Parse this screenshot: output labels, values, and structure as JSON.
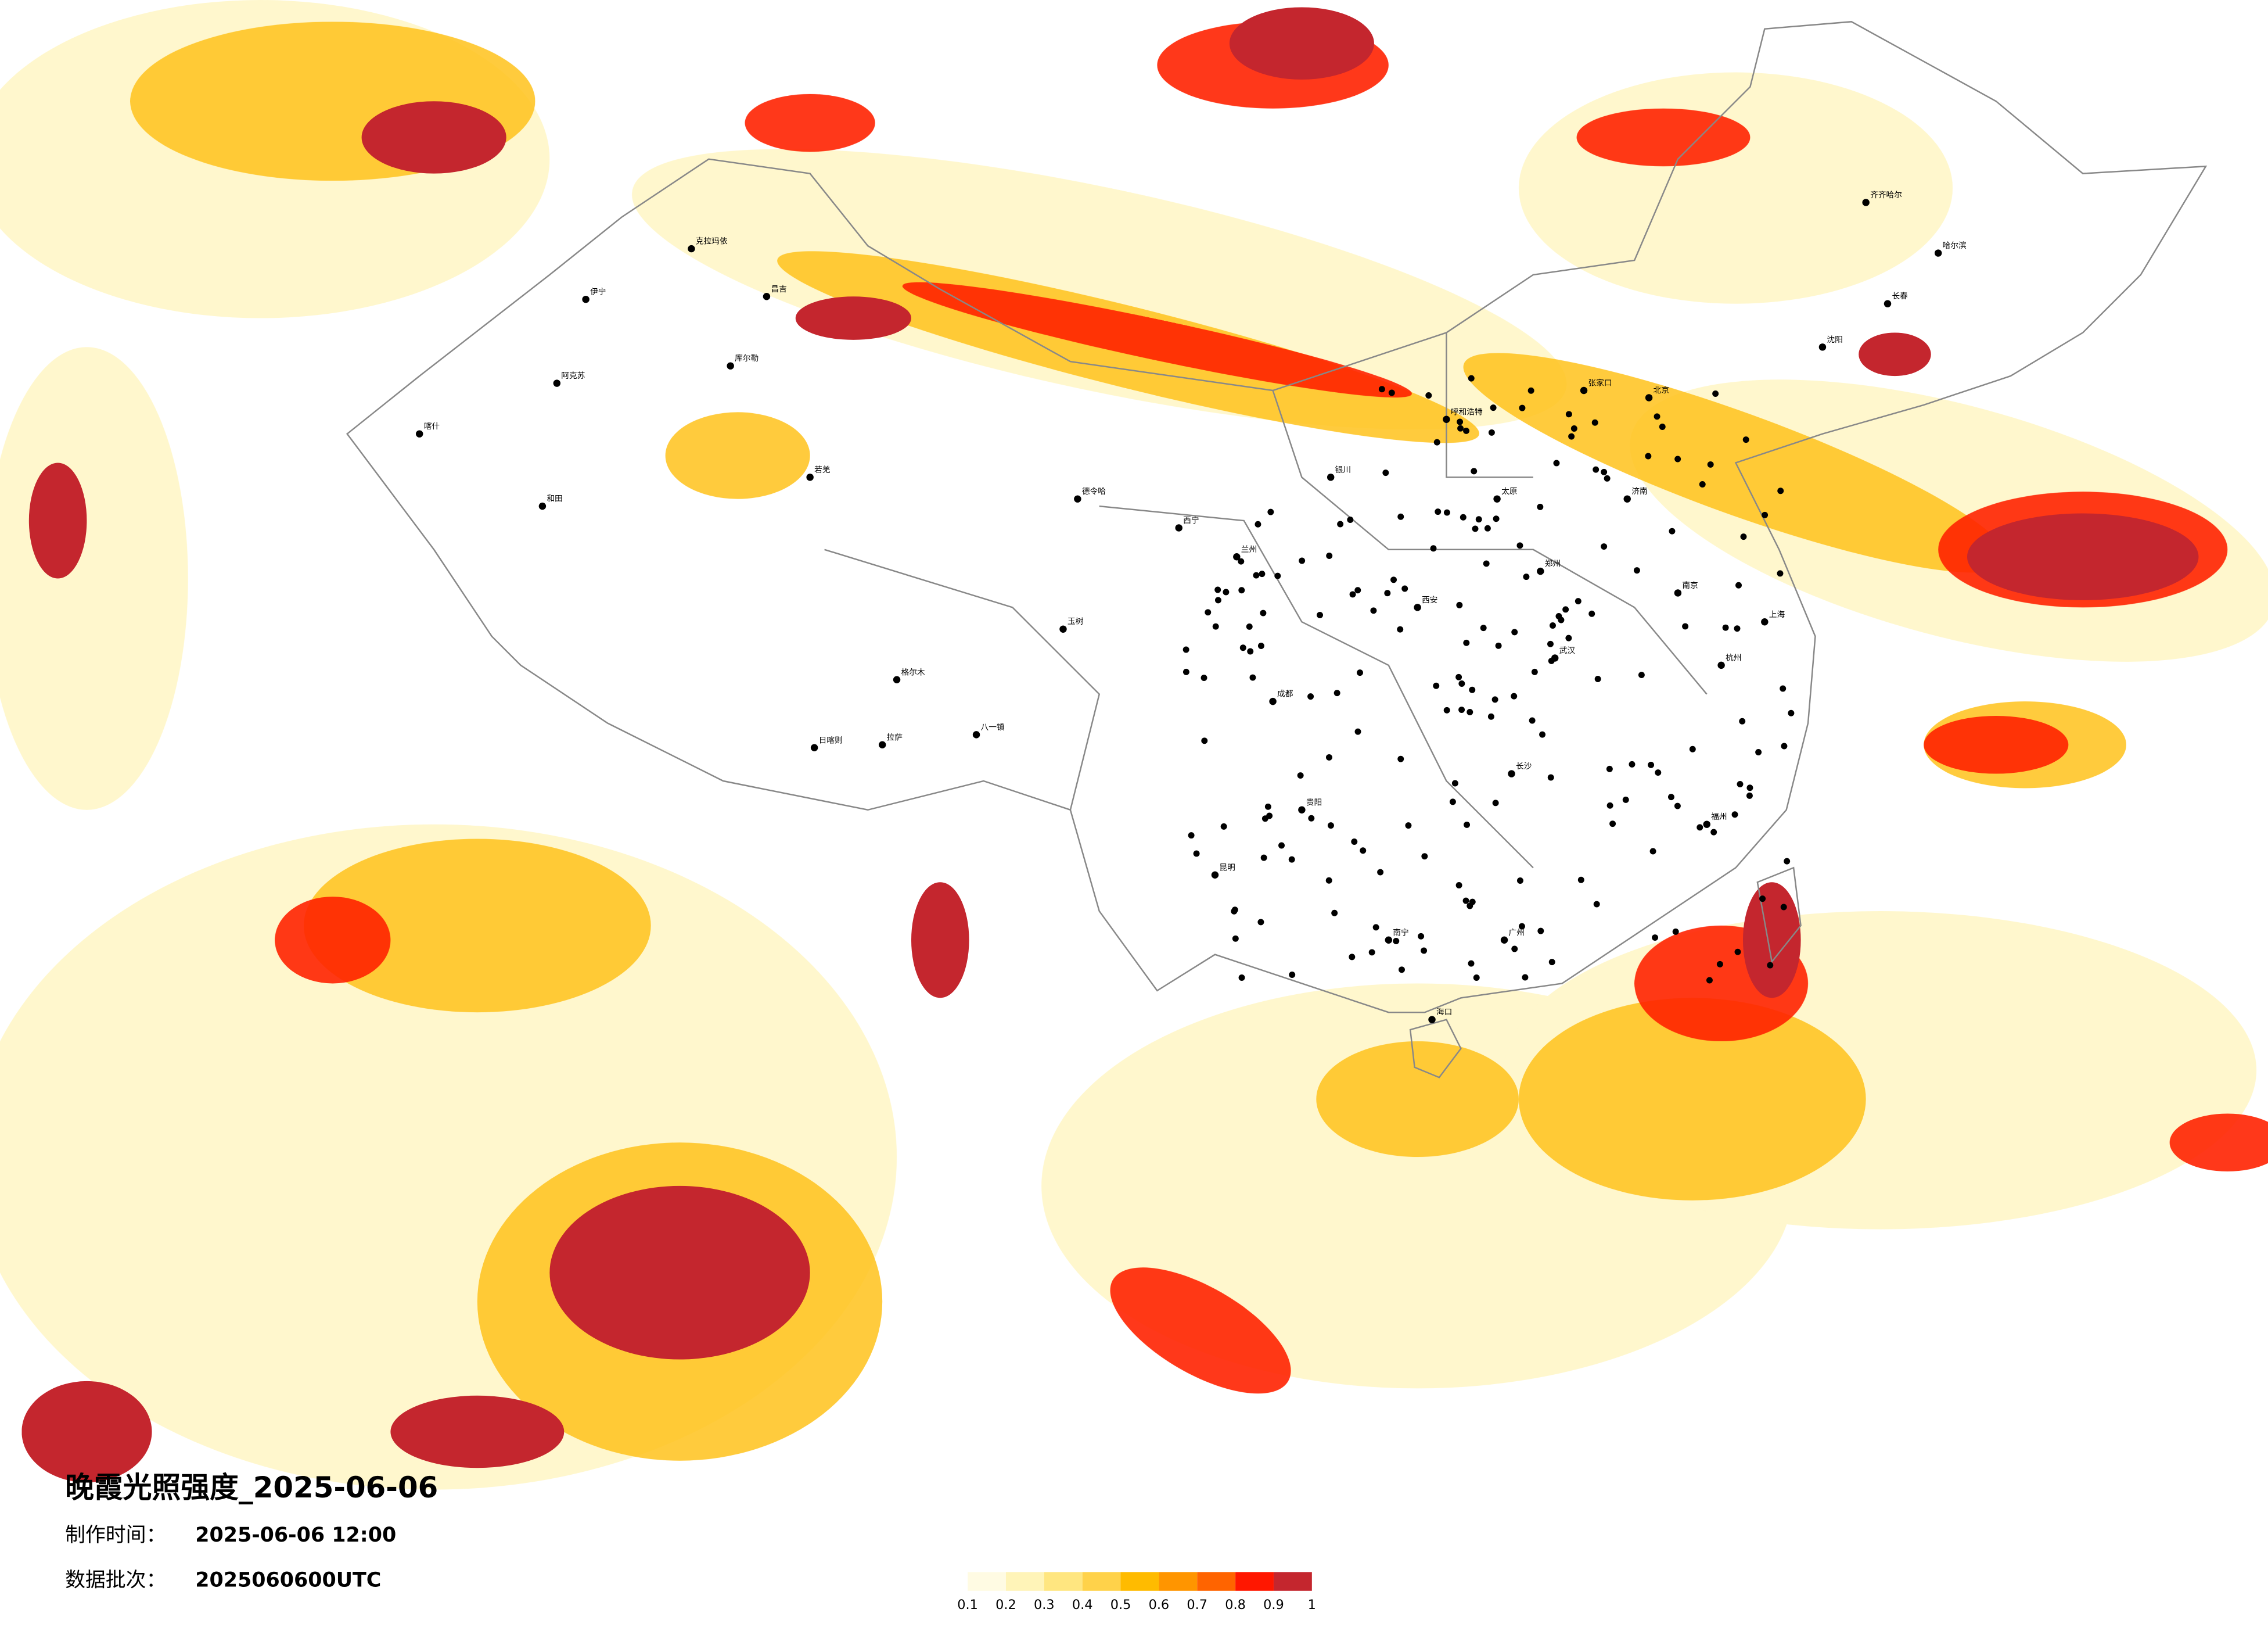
{
  "title": "晚霞光照强度_2025-06-06",
  "production_time": {
    "label": "制作时间：",
    "value": "2025-06-06 12:00"
  },
  "data_batch": {
    "label": "数据批次：",
    "value": "2025060600UTC"
  },
  "colorbar": {
    "ticks": [
      0.1,
      0.2,
      0.3,
      0.4,
      0.5,
      0.6,
      0.7,
      0.8,
      0.9,
      1
    ],
    "colors": [
      "#fffbe3",
      "#fff4b8",
      "#ffe680",
      "#ffd24a",
      "#ffbb00",
      "#ff9500",
      "#ff6400",
      "#ff1700",
      "#c4262e"
    ]
  },
  "cities": [
    "伊宁",
    "克拉玛依",
    "昌吉",
    "阿克苏",
    "库尔勒",
    "喀什",
    "和田",
    "若羌",
    "德令哈",
    "格尔木",
    "玉树",
    "日喀则",
    "拉萨",
    "八一镇",
    "兰州",
    "西宁",
    "成都",
    "昆明",
    "贵阳",
    "南宁",
    "海口",
    "长沙",
    "武汉",
    "郑州",
    "北京",
    "沈阳",
    "长春",
    "哈尔滨",
    "齐齐哈尔",
    "上海",
    "广州",
    "福州",
    "西安",
    "银川",
    "呼和浩特",
    "张家口",
    "太原",
    "济南",
    "南京",
    "杭州"
  ]
}
